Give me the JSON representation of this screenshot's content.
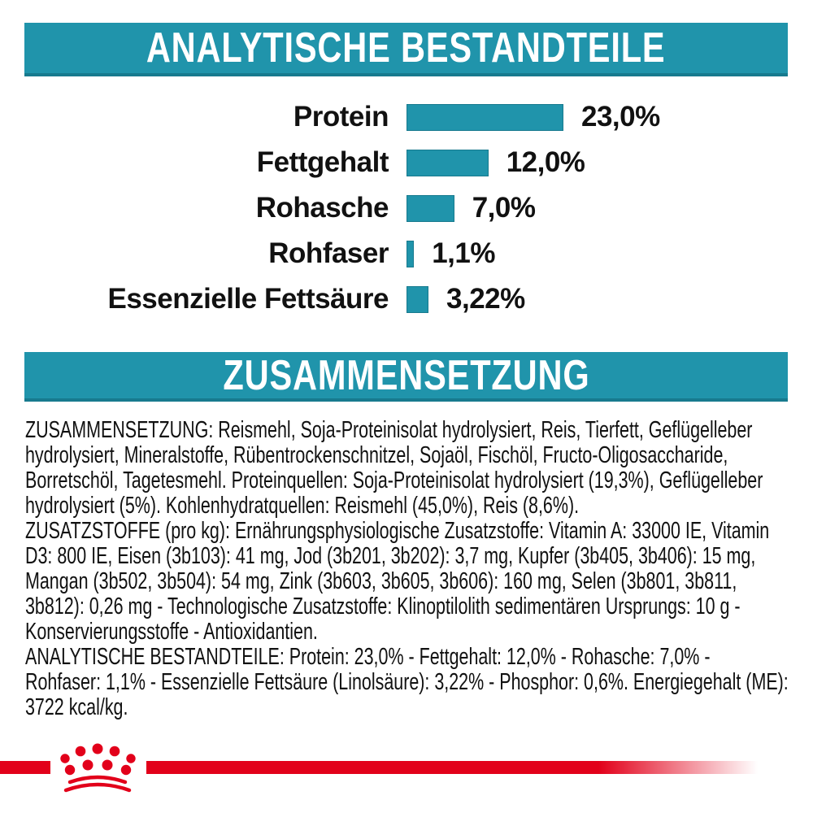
{
  "colors": {
    "teal": "#2094AB",
    "teal_dark": "#177A8E",
    "red": "#E2001A",
    "text": "#111111",
    "header_text": "#FFFFFF"
  },
  "headers": {
    "analytical": "ANALYTISCHE BESTANDTEILE",
    "composition": "ZUSAMMENSETZUNG"
  },
  "chart_data": {
    "type": "bar",
    "orientation": "horizontal",
    "categories": [
      "Protein",
      "Fettgehalt",
      "Rohasche",
      "Rohfaser",
      "Essenzielle Fettsäure"
    ],
    "values": [
      23.0,
      12.0,
      7.0,
      1.1,
      3.22
    ],
    "value_labels": [
      "23,0%",
      "12,0%",
      "7,0%",
      "1,1%",
      "3,22%"
    ],
    "unit": "%",
    "xlim": [
      0,
      23
    ],
    "bar_color": "#2094AB",
    "grid": false,
    "legend": false
  },
  "composition_text": {
    "zusammensetzung": "ZUSAMMENSETZUNG: Reismehl, Soja-Proteinisolat hydrolysiert, Reis, Tierfett, Geflügelleber hydrolysiert, Mineralstoffe, Rübentrockenschnitzel, Sojaöl, Fischöl, Fructo-Oligosaccharide, Borretschöl, Tagetesmehl. Proteinquellen: Soja-Proteinisolat hydrolysiert (19,3%), Geflügelleber hydrolysiert (5%). Kohlenhydratquellen: Reismehl (45,0%), Reis (8,6%).",
    "zusatzstoffe": "ZUSATZSTOFFE (pro kg): Ernährungsphysiologische Zusatzstoffe: Vitamin A: 33000 IE, Vitamin D3: 800 IE, Eisen (3b103): 41 mg, Jod (3b201, 3b202): 3,7 mg, Kupfer (3b405, 3b406): 15 mg, Mangan (3b502, 3b504): 54 mg, Zink (3b603, 3b605, 3b606): 160 mg, Selen (3b801, 3b811, 3b812): 0,26 mg - Technologische Zusatzstoffe: Klinoptilolith sedimentären Ursprungs: 10 g - Konservierungsstoffe - Antioxidantien.",
    "analytische": "ANALYTISCHE BESTANDTEILE: Protein: 23,0% - Fettgehalt: 12,0% - Rohasche: 7,0% - Rohfaser: 1,1% - Essenzielle Fettsäure (Linolsäure): 3,22% - Phosphor: 0,6%. Energiegehalt (ME): 3722 kcal/kg."
  },
  "footer": {
    "logo_icon": "royal-canin-crown"
  }
}
